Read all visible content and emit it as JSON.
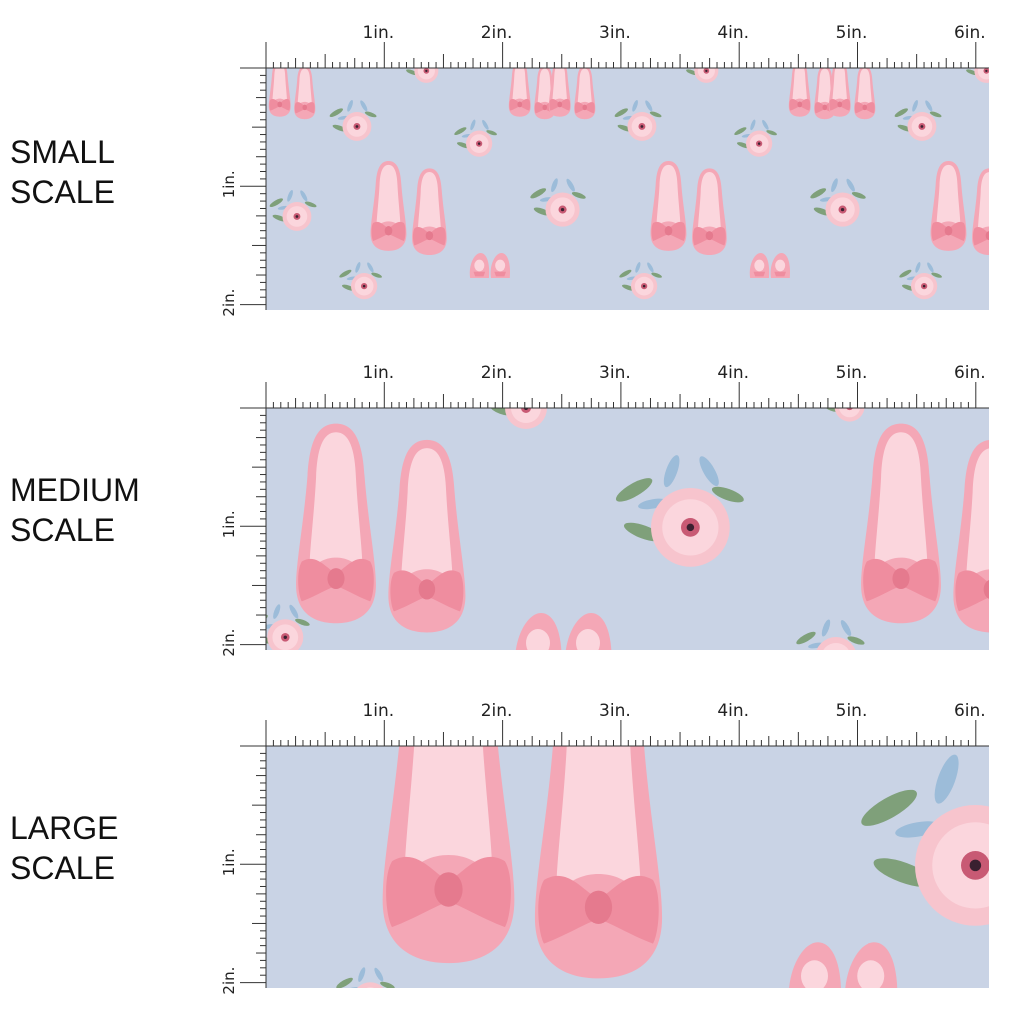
{
  "sections": [
    {
      "label_line1": "SMALL",
      "label_line2": "SCALE"
    },
    {
      "label_line1": "MEDIUM",
      "label_line2": "SCALE"
    },
    {
      "label_line1": "LARGE",
      "label_line2": "SCALE"
    }
  ],
  "ruler": {
    "horizontal": [
      "1in.",
      "2in.",
      "3in.",
      "4in.",
      "5in.",
      "6in."
    ],
    "vertical": [
      "1in.",
      "2in."
    ]
  },
  "colors": {
    "background": "#c9d3e5",
    "shoe": "#f4a7b6",
    "shoe_light": "#fbd6dd",
    "bow": "#ef8d9f",
    "flower": "#f7c4cd",
    "leaf_green": "#7fa07a",
    "leaf_blue": "#9cbcd9"
  },
  "pattern": {
    "motif_icons": [
      "ballet-flat-shoe-icon",
      "bow-icon",
      "pink-flower-icon",
      "leaf-icon"
    ]
  }
}
